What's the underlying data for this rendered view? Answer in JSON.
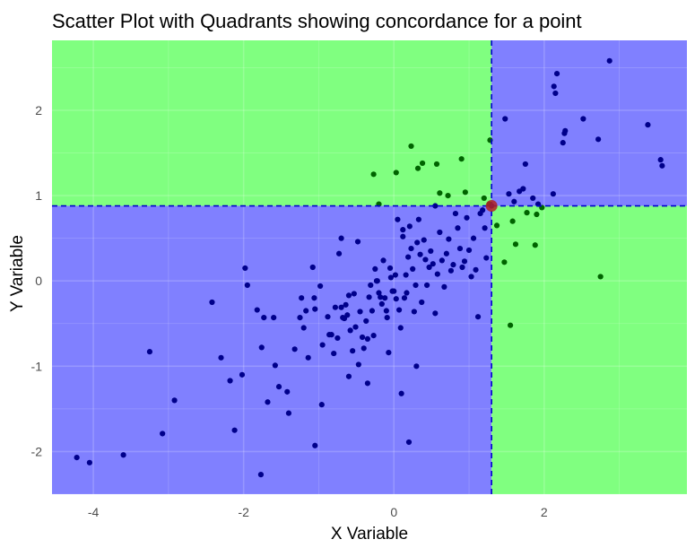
{
  "chart_data": {
    "type": "scatter",
    "title": "Scatter Plot with Quadrants showing concordance for a point",
    "xlabel": "X Variable",
    "ylabel": "Y Variable",
    "xlim": [
      -4.55,
      3.9
    ],
    "ylim": [
      -2.5,
      2.82
    ],
    "x_ticks": [
      -4,
      -2,
      0,
      2
    ],
    "x_tick_labels": [
      "-4",
      "-2",
      "0",
      "2"
    ],
    "y_ticks": [
      -2,
      -1,
      0,
      1,
      2
    ],
    "y_tick_labels": [
      "-2",
      "-1",
      "0",
      "1",
      "2"
    ],
    "grid": true,
    "reference_point": {
      "x": 1.3,
      "y": 0.88
    },
    "colors": {
      "concordant_fill": "#8080ff",
      "discordant_fill": "#80ff80",
      "concordant_point": "#00008b",
      "discordant_point": "#006400",
      "reference_point": "#b22222",
      "reference_line": "#0000cd"
    },
    "points": [
      [
        -4.22,
        -2.07
      ],
      [
        -4.05,
        -2.13
      ],
      [
        -3.6,
        -2.04
      ],
      [
        -3.25,
        -0.83
      ],
      [
        -3.08,
        -1.79
      ],
      [
        -2.92,
        -1.4
      ],
      [
        -2.42,
        -0.25
      ],
      [
        -2.18,
        -1.17
      ],
      [
        -2.12,
        -1.75
      ],
      [
        -2.02,
        -1.1
      ],
      [
        -1.98,
        0.15
      ],
      [
        -1.95,
        -0.05
      ],
      [
        -1.82,
        -0.34
      ],
      [
        -1.76,
        -0.78
      ],
      [
        -1.73,
        -0.43
      ],
      [
        -1.77,
        -2.27
      ],
      [
        -1.68,
        -1.42
      ],
      [
        -1.6,
        -0.43
      ],
      [
        -1.58,
        -0.99
      ],
      [
        -1.53,
        -1.24
      ],
      [
        -1.42,
        -1.3
      ],
      [
        -1.32,
        -0.8
      ],
      [
        -1.25,
        -0.43
      ],
      [
        -1.23,
        -0.2
      ],
      [
        -1.2,
        -0.55
      ],
      [
        -1.17,
        -0.35
      ],
      [
        -1.14,
        -0.9
      ],
      [
        -1.08,
        0.16
      ],
      [
        -1.06,
        -0.2
      ],
      [
        -1.05,
        -0.33
      ],
      [
        -0.98,
        -0.06
      ],
      [
        -0.96,
        -1.45
      ],
      [
        -0.88,
        -0.42
      ],
      [
        -0.86,
        -0.63
      ],
      [
        -0.83,
        -0.63
      ],
      [
        -0.8,
        -0.85
      ],
      [
        -0.78,
        -0.31
      ],
      [
        -0.75,
        -0.67
      ],
      [
        -0.73,
        0.32
      ],
      [
        -0.7,
        -0.31
      ],
      [
        -0.68,
        -0.43
      ],
      [
        -0.66,
        -0.44
      ],
      [
        -0.64,
        -0.28
      ],
      [
        -0.62,
        -0.4
      ],
      [
        -0.6,
        -0.17
      ],
      [
        -0.58,
        -0.58
      ],
      [
        -0.55,
        -0.82
      ],
      [
        -0.53,
        -0.15
      ],
      [
        -0.51,
        -0.54
      ],
      [
        -0.48,
        0.46
      ],
      [
        -0.47,
        -0.98
      ],
      [
        -0.45,
        -0.36
      ],
      [
        -0.42,
        -0.66
      ],
      [
        -0.4,
        -0.79
      ],
      [
        -0.37,
        -0.47
      ],
      [
        -0.35,
        -0.68
      ],
      [
        -0.33,
        -0.19
      ],
      [
        -0.31,
        -0.05
      ],
      [
        -0.29,
        -0.35
      ],
      [
        -0.27,
        -0.64
      ],
      [
        -0.25,
        0.14
      ],
      [
        -0.23,
        0.0
      ],
      [
        -0.22,
        0.0
      ],
      [
        -0.2,
        -0.14
      ],
      [
        -0.18,
        -0.19
      ],
      [
        -0.16,
        -0.27
      ],
      [
        -0.14,
        0.24
      ],
      [
        -0.12,
        -0.2
      ],
      [
        -0.1,
        -0.35
      ],
      [
        -0.09,
        -0.43
      ],
      [
        -0.07,
        -0.84
      ],
      [
        -0.05,
        0.15
      ],
      [
        -0.04,
        0.04
      ],
      [
        -0.02,
        -0.12
      ],
      [
        0.0,
        -0.12
      ],
      [
        0.02,
        0.07
      ],
      [
        0.03,
        -0.21
      ],
      [
        0.05,
        0.72
      ],
      [
        0.07,
        -0.34
      ],
      [
        0.09,
        -0.55
      ],
      [
        0.1,
        -1.32
      ],
      [
        0.12,
        0.52
      ],
      [
        0.14,
        -0.2
      ],
      [
        0.16,
        0.07
      ],
      [
        0.17,
        -0.14
      ],
      [
        0.19,
        0.28
      ],
      [
        0.21,
        0.64
      ],
      [
        0.23,
        0.38
      ],
      [
        0.25,
        0.14
      ],
      [
        0.27,
        -0.36
      ],
      [
        0.29,
        -0.05
      ],
      [
        0.31,
        0.45
      ],
      [
        0.33,
        0.72
      ],
      [
        0.35,
        0.31
      ],
      [
        0.37,
        -0.25
      ],
      [
        0.4,
        0.48
      ],
      [
        0.42,
        0.25
      ],
      [
        0.44,
        -0.05
      ],
      [
        0.47,
        0.16
      ],
      [
        0.49,
        0.35
      ],
      [
        0.52,
        0.2
      ],
      [
        0.55,
        -0.38
      ],
      [
        0.58,
        0.08
      ],
      [
        0.61,
        0.57
      ],
      [
        0.64,
        0.24
      ],
      [
        0.67,
        -0.07
      ],
      [
        0.7,
        0.32
      ],
      [
        0.73,
        0.49
      ],
      [
        0.76,
        0.12
      ],
      [
        0.79,
        0.19
      ],
      [
        0.82,
        0.79
      ],
      [
        0.85,
        0.62
      ],
      [
        0.88,
        0.38
      ],
      [
        0.91,
        0.16
      ],
      [
        0.94,
        0.23
      ],
      [
        0.97,
        0.74
      ],
      [
        1.0,
        0.36
      ],
      [
        1.03,
        0.05
      ],
      [
        1.06,
        0.5
      ],
      [
        1.09,
        0.13
      ],
      [
        1.12,
        -0.42
      ],
      [
        1.15,
        0.79
      ],
      [
        1.18,
        0.83
      ],
      [
        1.21,
        0.62
      ],
      [
        1.23,
        0.27
      ],
      [
        1.27,
        0.9
      ],
      [
        0.2,
        -1.89
      ],
      [
        -1.05,
        -1.93
      ],
      [
        -0.95,
        -0.75
      ],
      [
        -0.6,
        -1.12
      ],
      [
        0.3,
        -1.0
      ],
      [
        -0.35,
        -1.2
      ],
      [
        -1.4,
        -1.55
      ],
      [
        -2.3,
        -0.9
      ],
      [
        -0.7,
        0.5
      ],
      [
        0.55,
        0.88
      ],
      [
        0.12,
        0.6
      ],
      [
        -0.2,
        0.9
      ],
      [
        1.3,
        0.88
      ],
      [
        -0.27,
        1.25
      ],
      [
        0.03,
        1.27
      ],
      [
        0.23,
        1.58
      ],
      [
        0.32,
        1.32
      ],
      [
        0.38,
        1.38
      ],
      [
        0.57,
        1.37
      ],
      [
        0.61,
        1.03
      ],
      [
        0.72,
        1.0
      ],
      [
        0.9,
        1.43
      ],
      [
        0.95,
        1.04
      ],
      [
        1.2,
        0.97
      ],
      [
        1.28,
        1.65
      ],
      [
        1.37,
        0.65
      ],
      [
        1.47,
        0.22
      ],
      [
        1.58,
        0.7
      ],
      [
        1.62,
        0.43
      ],
      [
        1.55,
        -0.52
      ],
      [
        1.88,
        0.42
      ],
      [
        1.77,
        0.8
      ],
      [
        1.9,
        0.78
      ],
      [
        1.97,
        0.86
      ],
      [
        2.75,
        0.05
      ],
      [
        1.48,
        1.9
      ],
      [
        1.53,
        1.02
      ],
      [
        1.6,
        0.93
      ],
      [
        1.67,
        1.05
      ],
      [
        1.72,
        1.08
      ],
      [
        1.75,
        1.37
      ],
      [
        1.85,
        0.97
      ],
      [
        1.92,
        0.9
      ],
      [
        2.12,
        1.02
      ],
      [
        2.13,
        2.28
      ],
      [
        2.15,
        2.2
      ],
      [
        2.17,
        2.43
      ],
      [
        2.25,
        1.62
      ],
      [
        2.27,
        1.73
      ],
      [
        2.28,
        1.76
      ],
      [
        2.52,
        1.9
      ],
      [
        2.72,
        1.66
      ],
      [
        2.87,
        2.58
      ],
      [
        3.38,
        1.83
      ],
      [
        3.55,
        1.42
      ],
      [
        3.57,
        1.35
      ]
    ]
  }
}
